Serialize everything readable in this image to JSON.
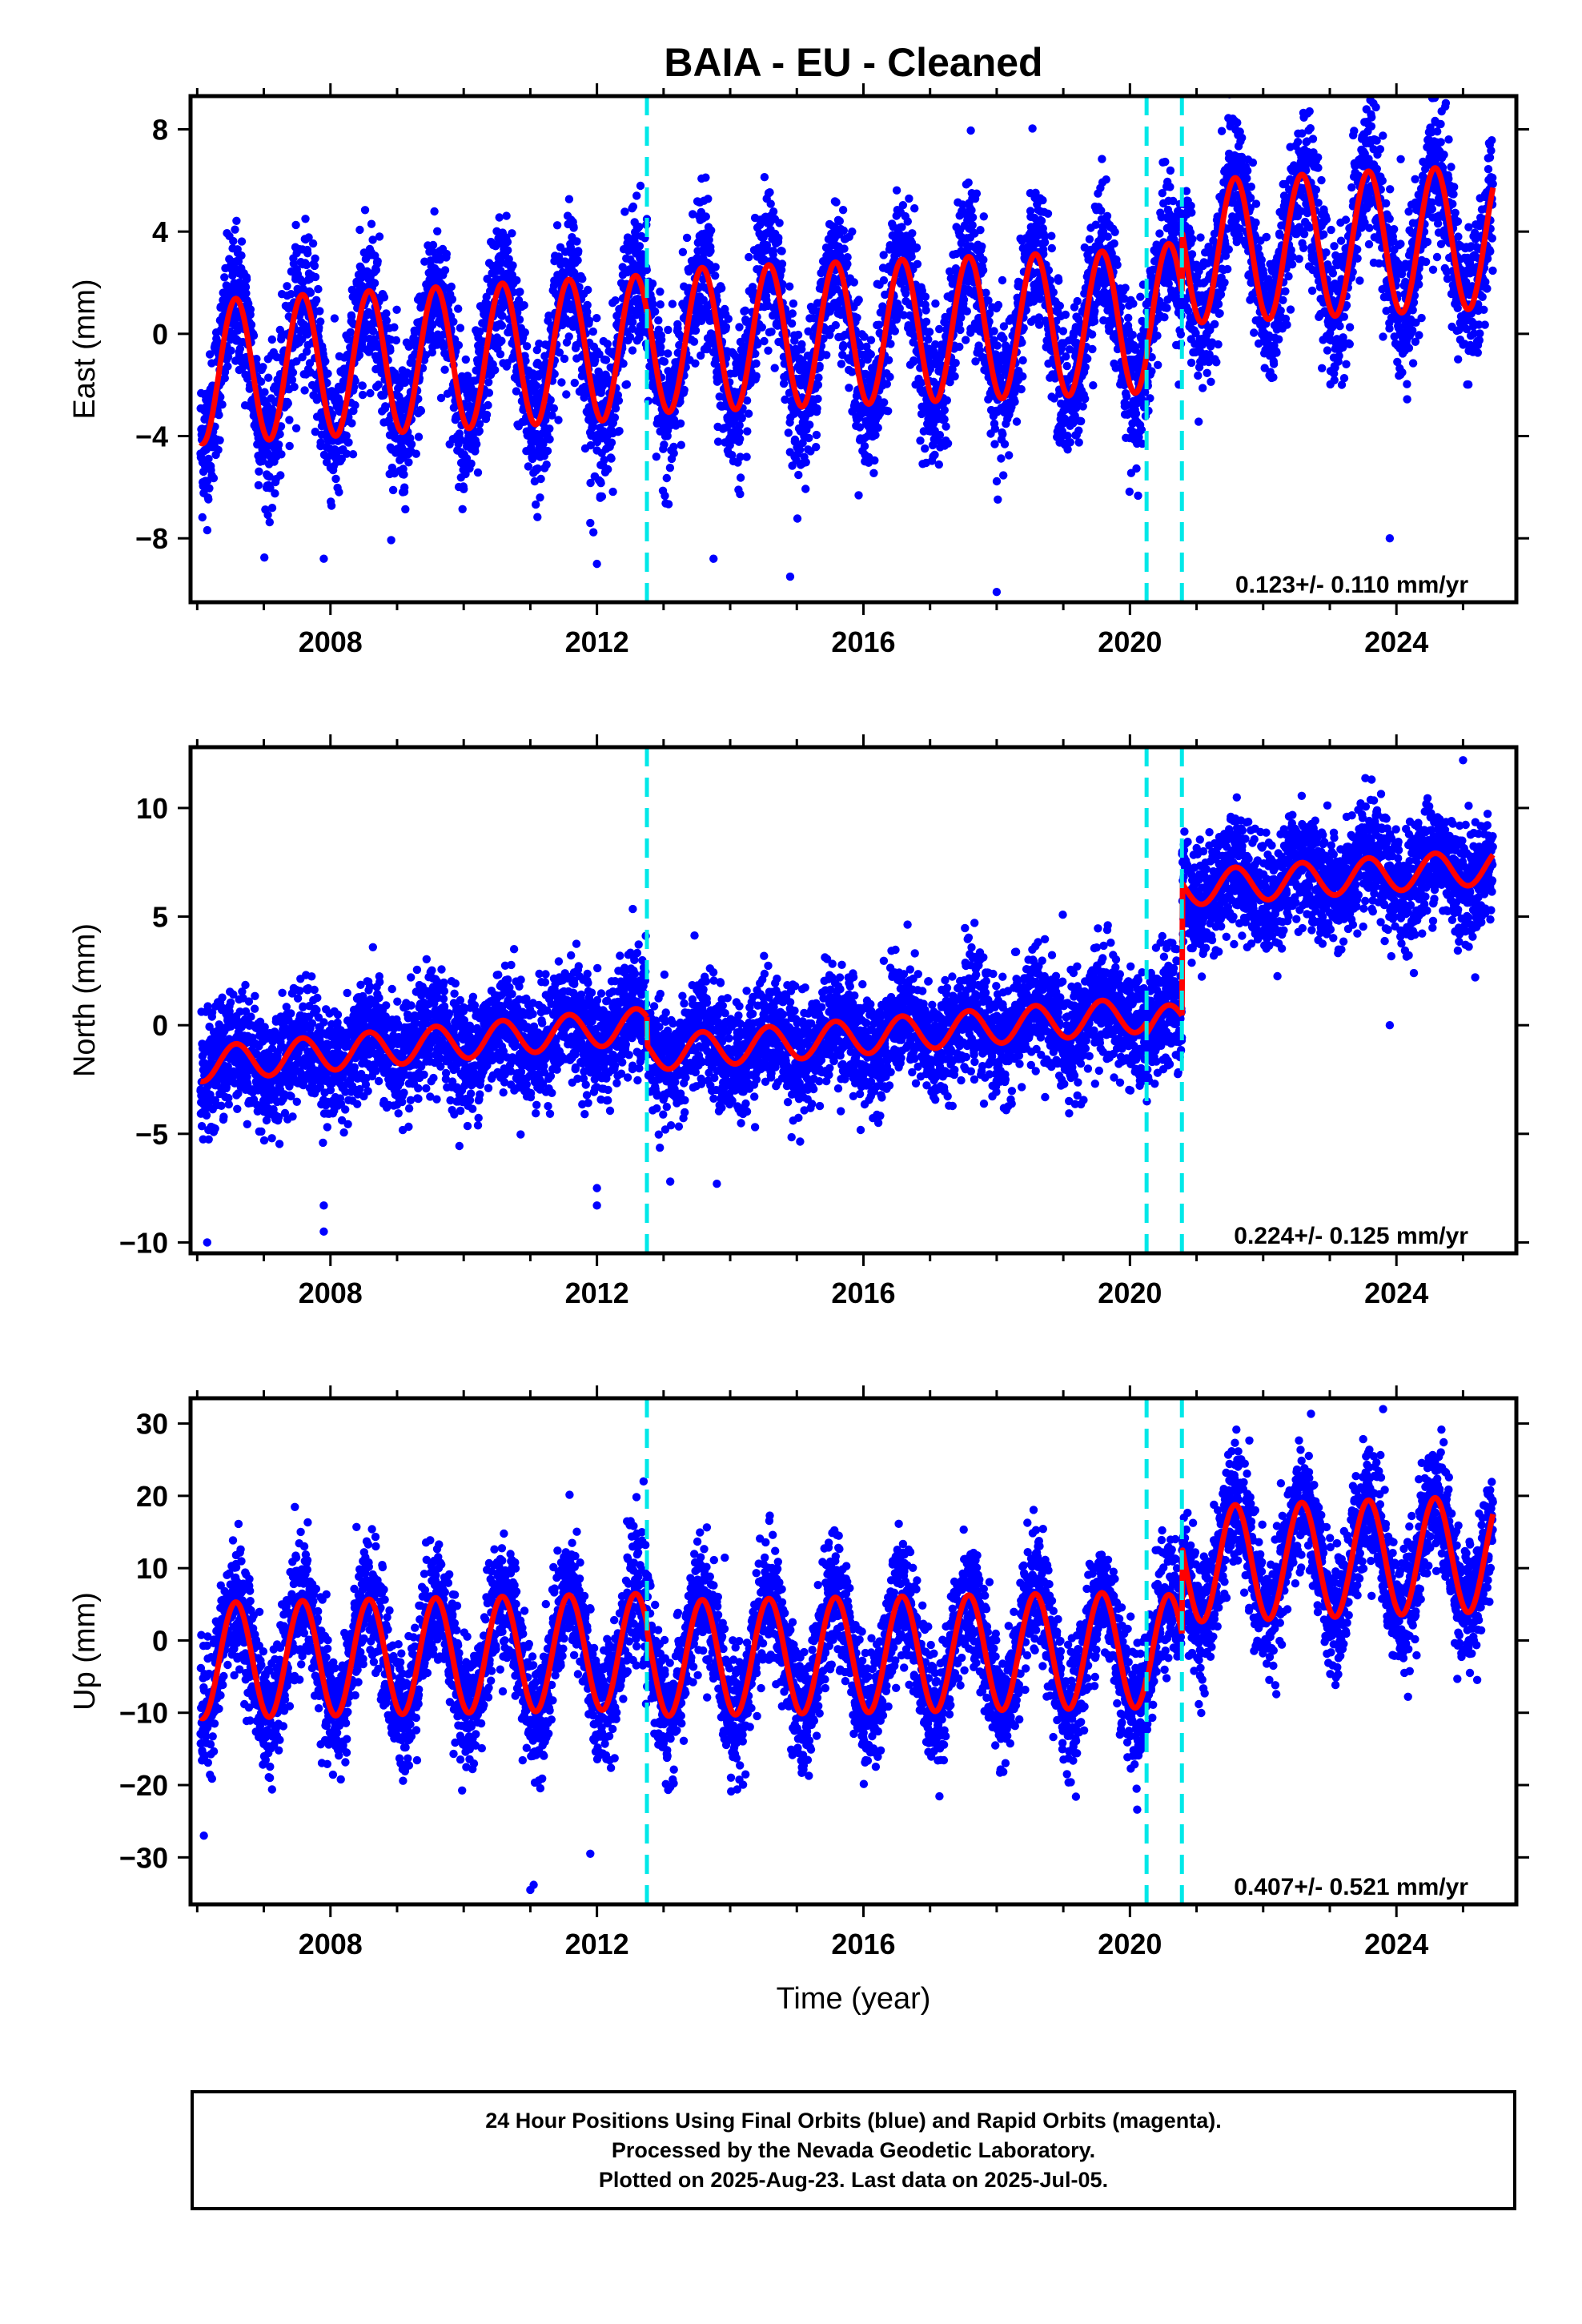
{
  "figure": {
    "title": "BAIA  - EU - Cleaned",
    "xlabel": "Time (year)"
  },
  "colors": {
    "data_points": "#0000ff",
    "model_fit": "#ff0000",
    "offset_lines": "#00e8e8",
    "frame": "#000000"
  },
  "chart_data": [
    {
      "type": "scatter",
      "component": "East",
      "ylabel": "East (mm)",
      "xlim": [
        2005.9,
        2025.8
      ],
      "ylim": [
        -10.5,
        9.3
      ],
      "xticks": [
        2008,
        2012,
        2016,
        2020,
        2024
      ],
      "yticks": [
        -8,
        -4,
        0,
        4,
        8
      ],
      "rate_label": "0.123+/- 0.110 mm/yr",
      "offset_epochs": [
        2012.75,
        2020.25,
        2020.78
      ],
      "model": {
        "segments": [
          {
            "from": 2006.05,
            "to": 2012.75,
            "base_start": -1.5,
            "base_end": -0.5,
            "amplitude": 2.8
          },
          {
            "from": 2012.75,
            "to": 2020.25,
            "base_start": -0.3,
            "base_end": 0.5,
            "amplitude": 2.8
          },
          {
            "from": 2020.25,
            "to": 2020.78,
            "base_start": 0.6,
            "base_end": 0.8,
            "amplitude": 2.8
          },
          {
            "from": 2020.78,
            "to": 2025.45,
            "base_start": 3.2,
            "base_end": 3.8,
            "amplitude": 2.8
          }
        ]
      },
      "scatter_noise_sd": 1.4,
      "outliers": [
        [
          2012.0,
          -9.0
        ],
        [
          2013.75,
          -8.8
        ],
        [
          2007.9,
          -8.8
        ],
        [
          2014.9,
          -9.5
        ],
        [
          2018.0,
          -10.1
        ],
        [
          2023.9,
          -8.0
        ],
        [
          2011.9,
          -7.4
        ]
      ]
    },
    {
      "type": "scatter",
      "component": "North",
      "ylabel": "North (mm)",
      "xlim": [
        2005.9,
        2025.8
      ],
      "ylim": [
        -10.5,
        12.8
      ],
      "xticks": [
        2008,
        2012,
        2016,
        2020,
        2024
      ],
      "yticks": [
        -10,
        -5,
        0,
        5,
        10
      ],
      "rate_label": "0.224+/- 0.125 mm/yr",
      "offset_epochs": [
        2012.75,
        2020.25,
        2020.78
      ],
      "model": {
        "segments": [
          {
            "from": 2006.05,
            "to": 2012.75,
            "base_start": -1.8,
            "base_end": 0.0,
            "amplitude": 0.8
          },
          {
            "from": 2012.75,
            "to": 2020.25,
            "base_start": -1.3,
            "base_end": 0.5,
            "amplitude": 0.8
          },
          {
            "from": 2020.25,
            "to": 2020.78,
            "base_start": 0.0,
            "base_end": 0.2,
            "amplitude": 0.8
          },
          {
            "from": 2020.78,
            "to": 2025.45,
            "base_start": 6.3,
            "base_end": 7.3,
            "amplitude": 0.8
          }
        ]
      },
      "scatter_noise_sd": 1.3,
      "outliers": [
        [
          2006.15,
          -10.0
        ],
        [
          2007.9,
          -9.5
        ],
        [
          2007.9,
          -8.3
        ],
        [
          2012.0,
          -8.3
        ],
        [
          2012.0,
          -7.5
        ],
        [
          2013.1,
          -7.2
        ],
        [
          2013.8,
          -7.3
        ],
        [
          2023.9,
          0.0
        ],
        [
          2025.0,
          12.2
        ]
      ]
    },
    {
      "type": "scatter",
      "component": "Up",
      "ylabel": "Up (mm)",
      "xlim": [
        2005.9,
        2025.8
      ],
      "ylim": [
        -36.5,
        33.5
      ],
      "xticks": [
        2008,
        2012,
        2016,
        2020,
        2024
      ],
      "yticks": [
        -30,
        -20,
        -10,
        0,
        10,
        20,
        30
      ],
      "rate_label": "0.407+/- 0.521 mm/yr",
      "offset_epochs": [
        2012.75,
        2020.25,
        2020.78
      ],
      "model": {
        "segments": [
          {
            "from": 2006.05,
            "to": 2012.75,
            "base_start": -2.8,
            "base_end": -1.5,
            "amplitude": 8.0
          },
          {
            "from": 2012.75,
            "to": 2020.25,
            "base_start": -2.5,
            "base_end": -1.3,
            "amplitude": 8.0
          },
          {
            "from": 2020.25,
            "to": 2020.78,
            "base_start": -2.0,
            "base_end": -1.5,
            "amplitude": 8.0
          },
          {
            "from": 2020.78,
            "to": 2025.45,
            "base_start": 10.5,
            "base_end": 12.0,
            "amplitude": 8.0
          }
        ]
      },
      "scatter_noise_sd": 4.2,
      "outliers": [
        [
          2011.0,
          -34.5
        ],
        [
          2011.05,
          -33.8
        ],
        [
          2006.1,
          -27.0
        ],
        [
          2011.9,
          -29.5
        ],
        [
          2020.1,
          -20.5
        ],
        [
          2012.7,
          22.0
        ],
        [
          2023.8,
          32.0
        ]
      ]
    }
  ],
  "caption": {
    "line1": "24 Hour Positions Using Final Orbits (blue) and Rapid Orbits (magenta).",
    "line2": "Processed by the Nevada Geodetic Laboratory.",
    "line3": "Plotted on 2025-Aug-23. Last data on 2025-Jul-05."
  }
}
